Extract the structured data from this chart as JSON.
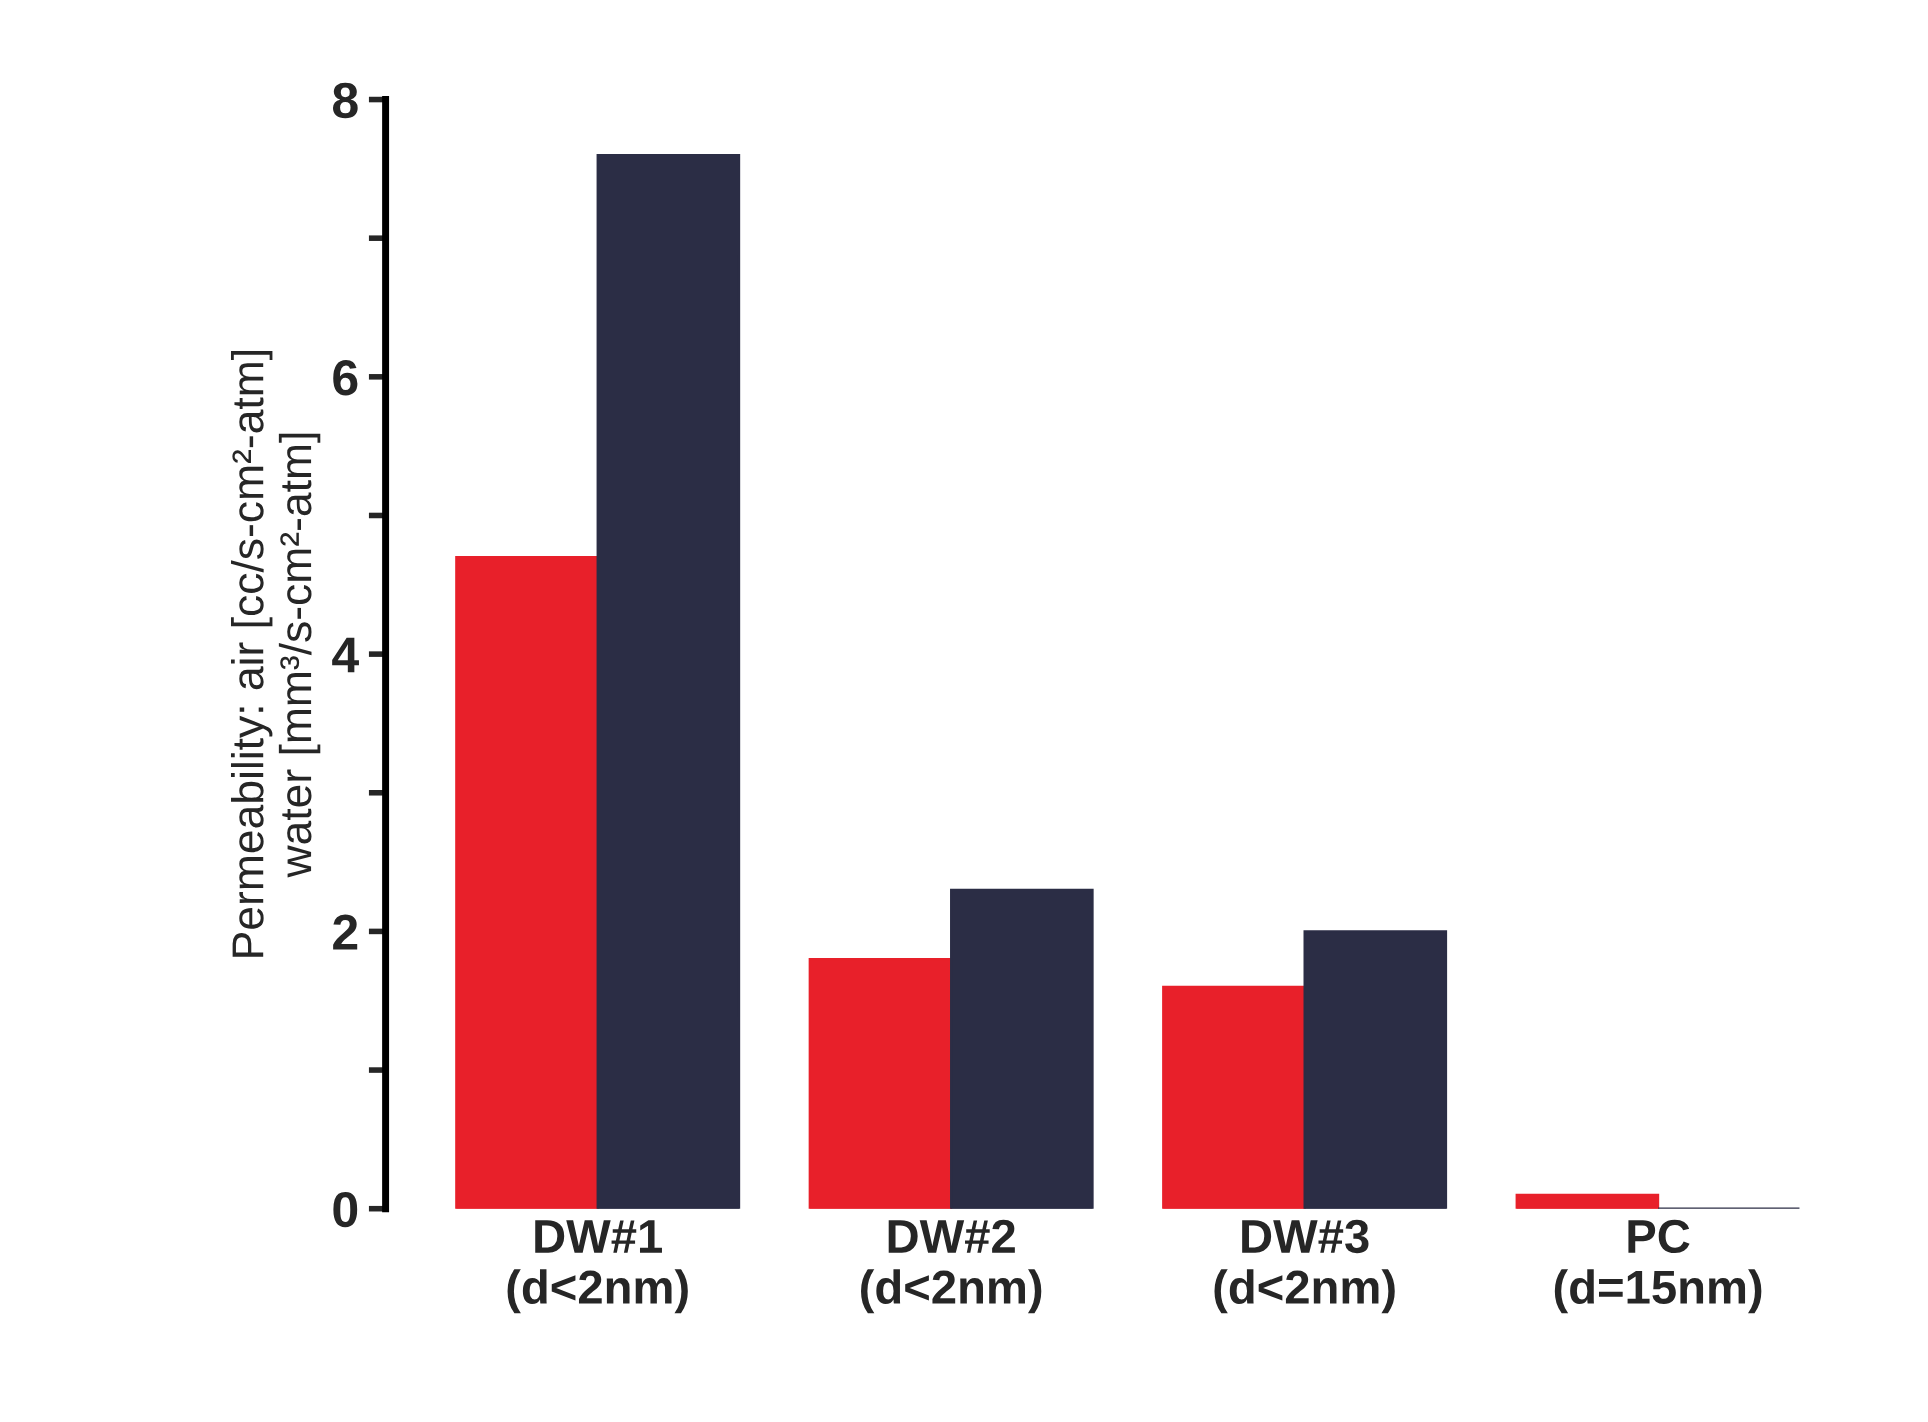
{
  "chart_data": {
    "type": "bar",
    "ylabel": "Permeability: air [cc/s-cm²-atm]\nwater [mm³/s-cm²-atm]",
    "categories": [
      "DW#1\n(d<2nm)",
      "DW#2\n(d<2nm)",
      "DW#3\n(d<2nm)",
      "PC\n(d=15nm)"
    ],
    "series": [
      {
        "color": "#e8202a",
        "values": [
          4.7,
          1.8,
          1.6,
          0.1
        ]
      },
      {
        "color": "#2b2d45",
        "values": [
          7.6,
          2.3,
          2.0,
          0.0
        ]
      }
    ],
    "ylim": [
      0,
      8
    ],
    "yticks": [
      0,
      2,
      4,
      6,
      8
    ],
    "grid": false,
    "legend": false
  }
}
